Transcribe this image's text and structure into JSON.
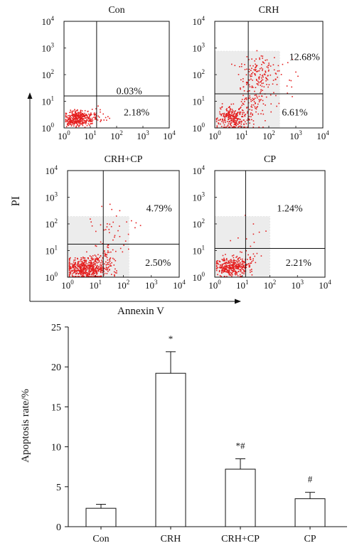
{
  "colors": {
    "dots": "#e41e1e",
    "axis": "#111111",
    "gate": "#ececec",
    "bar_fill": "#ffffff"
  },
  "flow": {
    "y_axis_label": "PI",
    "x_axis_label": "Annexin V",
    "tick_base": "10",
    "tick_exponents": [
      "0",
      "1",
      "2",
      "3",
      "4"
    ],
    "panels": [
      {
        "title": "Con",
        "upper_right": "0.03%",
        "lower_right": "2.18%"
      },
      {
        "title": "CRH",
        "upper_right": "12.68%",
        "lower_right": "6.61%"
      },
      {
        "title": "CRH+CP",
        "upper_right": "4.79%",
        "lower_right": "2.50%"
      },
      {
        "title": "CP",
        "upper_right": "1.24%",
        "lower_right": "2.21%"
      }
    ]
  },
  "chart_data": {
    "type": "bar",
    "categories": [
      "Con",
      "CRH",
      "CRH+CP",
      "CP"
    ],
    "values": [
      2.3,
      19.2,
      7.2,
      3.5
    ],
    "errors": [
      0.5,
      2.7,
      1.3,
      0.8
    ],
    "annotations": [
      "",
      "*",
      "*#",
      "#"
    ],
    "ylabel": "Apoptosis rate/%",
    "xlabel": "",
    "ylim": [
      0,
      25
    ],
    "yticks": [
      "0",
      "5",
      "10",
      "15",
      "20",
      "25"
    ],
    "error_bars": "upper",
    "grid": false
  }
}
